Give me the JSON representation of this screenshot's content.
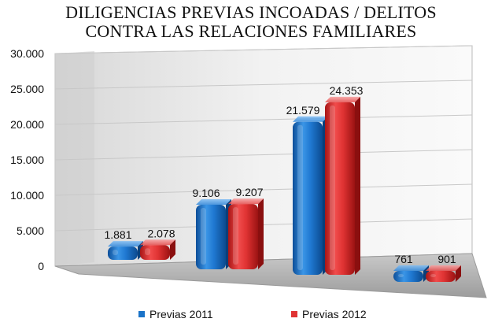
{
  "chart_data": {
    "type": "bar",
    "title_lines": [
      "DILIGENCIAS PREVIAS INCOADAS / DELITOS",
      "CONTRA LAS RELACIONES FAMILIARES"
    ],
    "categories": [
      "",
      "",
      "",
      ""
    ],
    "series": [
      {
        "name": "Previas 2011",
        "values": [
          1881,
          9106,
          21579,
          761
        ],
        "labels": [
          "1.881",
          "9.106",
          "21.579",
          "761"
        ],
        "color": "#1a73c8"
      },
      {
        "name": "Previas 2012",
        "values": [
          2078,
          9207,
          24353,
          901
        ],
        "labels": [
          "2.078",
          "9.207",
          "24.353",
          "901"
        ],
        "color": "#e03333"
      }
    ],
    "ylim": [
      0,
      30000
    ],
    "yticks": [
      {
        "value": 30000,
        "label": "30.000"
      },
      {
        "value": 25000,
        "label": "25.000"
      },
      {
        "value": 20000,
        "label": "20.000"
      },
      {
        "value": 15000,
        "label": "15.000"
      },
      {
        "value": 10000,
        "label": "10.000"
      },
      {
        "value": 5000,
        "label": "5.000"
      },
      {
        "value": 0,
        "label": "0"
      }
    ],
    "grid": true,
    "legend_position": "bottom",
    "view": "3d"
  }
}
